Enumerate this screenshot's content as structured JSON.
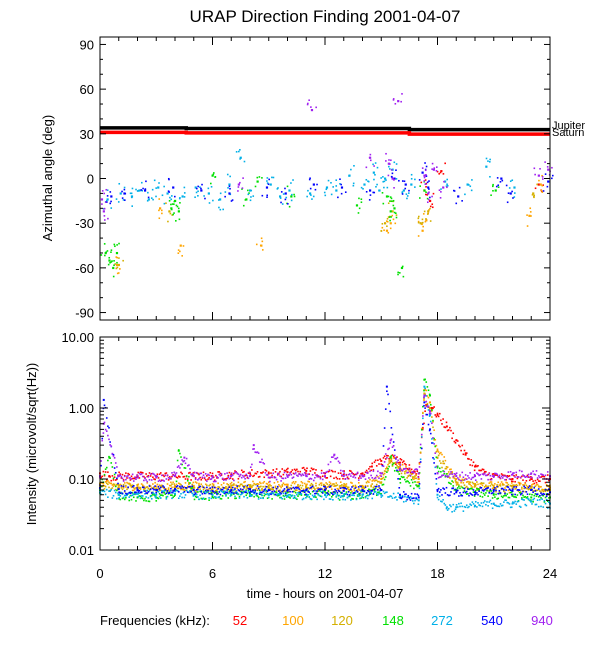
{
  "title": "URAP Direction Finding  2001-04-07",
  "xlabel": "time - hours on 2001-04-07",
  "x_ticks": [
    0,
    6,
    12,
    18,
    24
  ],
  "frequencies_label": "Frequencies (kHz):",
  "frequencies": [
    {
      "label": "52",
      "color": "#ff0000"
    },
    {
      "label": "100",
      "color": "#ffa500"
    },
    {
      "label": "120",
      "color": "#d4b000"
    },
    {
      "label": "148",
      "color": "#00e000"
    },
    {
      "label": "272",
      "color": "#00b0e8"
    },
    {
      "label": "540",
      "color": "#0000ff"
    },
    {
      "label": "940",
      "color": "#a020f0"
    }
  ],
  "chart_data": [
    {
      "type": "scatter",
      "title": "URAP Direction Finding  2001-04-07",
      "ylabel": "Azimuthal angle (deg)",
      "xlabel": "",
      "xlim": [
        0,
        24
      ],
      "ylim": [
        -95,
        95
      ],
      "y_ticks": [
        90,
        60,
        30,
        0,
        -30,
        -60,
        -90
      ],
      "reference_lines": [
        {
          "name": "Jupiter",
          "color": "#000000",
          "points": [
            [
              0,
              34
            ],
            [
              4.6,
              34
            ],
            [
              4.6,
              33.6
            ],
            [
              16.5,
              33.6
            ],
            [
              16.5,
              32.8
            ],
            [
              24,
              32.8
            ]
          ]
        },
        {
          "name": "Saturn",
          "color": "#ff0000",
          "points": [
            [
              0,
              31
            ],
            [
              4.6,
              31
            ],
            [
              4.6,
              30.6
            ],
            [
              16.5,
              30.6
            ],
            [
              16.5,
              29.8
            ],
            [
              24,
              29.8
            ]
          ]
        }
      ],
      "series": [
        {
          "name": "52",
          "color": "#ff0000",
          "points": [
            [
              17.3,
              -8
            ],
            [
              17.6,
              -15
            ],
            [
              18.2,
              5
            ],
            [
              23.4,
              -4
            ]
          ]
        },
        {
          "name": "100",
          "color": "#ffa500",
          "points": [
            [
              0.9,
              -58
            ],
            [
              3.2,
              -20
            ],
            [
              4.3,
              -45
            ],
            [
              8.6,
              -45
            ],
            [
              15.3,
              -35
            ],
            [
              15.5,
              -30
            ],
            [
              17.2,
              -35
            ],
            [
              17.4,
              -28
            ],
            [
              22.9,
              -25
            ],
            [
              23.5,
              -4
            ]
          ]
        },
        {
          "name": "120",
          "color": "#d4b000",
          "points": [
            [
              1.0,
              -58
            ],
            [
              3.7,
              -22
            ],
            [
              15.2,
              -30
            ],
            [
              15.6,
              -22
            ],
            [
              17.1,
              -30
            ],
            [
              17.5,
              -22
            ],
            [
              23.1,
              -10
            ]
          ]
        },
        {
          "name": "148",
          "color": "#00e000",
          "points": [
            [
              0.3,
              -50
            ],
            [
              0.5,
              -55
            ],
            [
              0.7,
              -60
            ],
            [
              0.9,
              -50
            ],
            [
              3.8,
              -20
            ],
            [
              4.0,
              -15
            ],
            [
              4.2,
              -22
            ],
            [
              6.0,
              2
            ],
            [
              7.8,
              -14
            ],
            [
              8.4,
              -2
            ],
            [
              10.2,
              -12
            ],
            [
              13.7,
              -18
            ],
            [
              15.3,
              -12
            ],
            [
              15.5,
              -22
            ],
            [
              15.7,
              -20
            ],
            [
              16.1,
              -60
            ],
            [
              17.3,
              -8
            ],
            [
              21.1,
              -8
            ]
          ]
        },
        {
          "name": "272",
          "color": "#00b0e8",
          "points": [
            [
              0.4,
              -14
            ],
            [
              1.1,
              -10
            ],
            [
              1.7,
              -12
            ],
            [
              2.1,
              -8
            ],
            [
              2.6,
              -14
            ],
            [
              3.1,
              -6
            ],
            [
              3.6,
              -10
            ],
            [
              4.4,
              -12
            ],
            [
              5.1,
              -6
            ],
            [
              5.8,
              -10
            ],
            [
              6.4,
              -14
            ],
            [
              6.9,
              -4
            ],
            [
              7.5,
              14
            ],
            [
              8.0,
              -8
            ],
            [
              9.1,
              -4
            ],
            [
              9.6,
              -12
            ],
            [
              10.1,
              -8
            ],
            [
              11.2,
              -10
            ],
            [
              12.1,
              -6
            ],
            [
              12.6,
              -8
            ],
            [
              13.3,
              2
            ],
            [
              14.1,
              -4
            ],
            [
              14.6,
              4
            ],
            [
              14.9,
              -8
            ],
            [
              15.2,
              0
            ],
            [
              15.6,
              6
            ],
            [
              16.2,
              -8
            ],
            [
              16.6,
              -4
            ],
            [
              18.4,
              -2
            ],
            [
              19.6,
              -4
            ],
            [
              20.6,
              8
            ],
            [
              22.1,
              -6
            ]
          ]
        },
        {
          "name": "540",
          "color": "#0000ff",
          "points": [
            [
              0.6,
              -12
            ],
            [
              1.3,
              -10
            ],
            [
              2.4,
              -8
            ],
            [
              3.9,
              -6
            ],
            [
              5.4,
              -8
            ],
            [
              6.9,
              -10
            ],
            [
              8.9,
              -6
            ],
            [
              9.9,
              -10
            ],
            [
              11.4,
              -4
            ],
            [
              12.9,
              -6
            ],
            [
              14.4,
              -8
            ],
            [
              15.7,
              0
            ],
            [
              16.3,
              -4
            ],
            [
              17.2,
              4
            ],
            [
              17.5,
              -6
            ],
            [
              19.1,
              -12
            ],
            [
              21.4,
              0
            ],
            [
              21.9,
              -10
            ],
            [
              23.9,
              -2
            ]
          ]
        },
        {
          "name": "940",
          "color": "#a020f0",
          "points": [
            [
              0.1,
              -14
            ],
            [
              0.2,
              -22
            ],
            [
              7.4,
              -4
            ],
            [
              11.3,
              46
            ],
            [
              14.4,
              14
            ],
            [
              15.4,
              10
            ],
            [
              15.6,
              0
            ],
            [
              15.9,
              52
            ],
            [
              17.3,
              2
            ],
            [
              17.5,
              -10
            ],
            [
              17.8,
              6
            ],
            [
              18.3,
              -6
            ],
            [
              23.4,
              2
            ],
            [
              23.9,
              6
            ]
          ]
        }
      ]
    },
    {
      "type": "scatter",
      "title": "",
      "ylabel": "Intensity (microvolt/sqrt(Hz))",
      "xlabel": "time - hours on 2001-04-07",
      "xlim": [
        0,
        24
      ],
      "ylim": [
        0.01,
        10
      ],
      "yscale": "log",
      "y_ticks": [
        "10.00",
        "1.00",
        "0.10",
        "0.01"
      ],
      "series": [
        {
          "name": "52",
          "color": "#ff0000",
          "x": [
            0,
            0.5,
            1,
            2,
            3,
            4,
            5,
            6,
            7,
            8,
            9,
            10,
            11,
            12,
            13,
            14,
            14.5,
            15,
            15.5,
            16,
            16.5,
            17,
            17.2,
            17.4,
            17.7,
            18,
            18.5,
            19,
            19.5,
            20,
            20.5,
            21,
            22,
            23,
            24
          ],
          "y": [
            0.12,
            0.11,
            0.11,
            0.11,
            0.11,
            0.11,
            0.11,
            0.11,
            0.115,
            0.12,
            0.12,
            0.125,
            0.13,
            0.12,
            0.115,
            0.12,
            0.15,
            0.18,
            0.2,
            0.17,
            0.14,
            0.12,
            0.5,
            1.1,
            1.0,
            0.8,
            0.55,
            0.35,
            0.22,
            0.15,
            0.12,
            0.11,
            0.1,
            0.1,
            0.1
          ]
        },
        {
          "name": "100",
          "color": "#ffa500",
          "x": [
            0,
            1,
            2,
            3,
            4,
            5,
            6,
            7,
            8,
            9,
            10,
            11,
            12,
            13,
            14,
            15,
            15.5,
            16,
            17,
            17.3,
            17.6,
            18,
            19,
            20,
            21,
            22,
            23,
            24
          ],
          "y": [
            0.085,
            0.08,
            0.08,
            0.078,
            0.08,
            0.08,
            0.078,
            0.08,
            0.082,
            0.08,
            0.08,
            0.082,
            0.08,
            0.08,
            0.08,
            0.1,
            0.2,
            0.15,
            0.1,
            1.8,
            1.2,
            0.25,
            0.1,
            0.085,
            0.08,
            0.08,
            0.078,
            0.075
          ]
        },
        {
          "name": "120",
          "color": "#d4b000",
          "x": [
            0,
            1,
            2,
            3,
            4,
            5,
            6,
            7,
            8,
            9,
            10,
            11,
            12,
            13,
            14,
            15,
            15.5,
            16,
            17,
            17.3,
            17.6,
            18,
            19,
            20,
            21,
            22,
            23,
            24
          ],
          "y": [
            0.08,
            0.075,
            0.075,
            0.072,
            0.075,
            0.075,
            0.073,
            0.075,
            0.077,
            0.075,
            0.074,
            0.076,
            0.075,
            0.075,
            0.075,
            0.09,
            0.18,
            0.13,
            0.09,
            1.6,
            1.0,
            0.2,
            0.09,
            0.08,
            0.075,
            0.074,
            0.072,
            0.07
          ]
        },
        {
          "name": "148",
          "color": "#00e000",
          "x": [
            0,
            0.5,
            1,
            2,
            3,
            4,
            4.2,
            5,
            6,
            7,
            8,
            9,
            10,
            11,
            12,
            13,
            14,
            15,
            15.5,
            16,
            17,
            17.3,
            17.6,
            18,
            19,
            20,
            21,
            22,
            23,
            24
          ],
          "y": [
            0.07,
            0.2,
            0.06,
            0.055,
            0.055,
            0.06,
            0.25,
            0.06,
            0.058,
            0.06,
            0.062,
            0.06,
            0.058,
            0.06,
            0.06,
            0.058,
            0.06,
            0.07,
            0.2,
            0.1,
            0.08,
            2.5,
            1.5,
            0.15,
            0.07,
            0.065,
            0.06,
            0.058,
            0.055,
            0.055
          ]
        },
        {
          "name": "272",
          "color": "#00b0e8",
          "x": [
            0,
            1,
            2,
            3,
            4,
            5,
            6,
            7,
            8,
            9,
            10,
            11,
            12,
            13,
            14,
            15,
            16,
            17,
            17.3,
            17.6,
            18,
            18.5,
            19,
            20,
            21,
            22,
            23,
            24
          ],
          "y": [
            0.065,
            0.06,
            0.062,
            0.06,
            0.062,
            0.06,
            0.06,
            0.062,
            0.06,
            0.06,
            0.058,
            0.06,
            0.06,
            0.058,
            0.06,
            0.06,
            0.055,
            0.05,
            2.0,
            0.8,
            0.06,
            0.04,
            0.04,
            0.042,
            0.045,
            0.045,
            0.048,
            0.045
          ]
        },
        {
          "name": "540",
          "color": "#0000ff",
          "x": [
            0,
            0.2,
            1,
            2,
            3,
            4,
            5,
            6,
            7,
            8,
            9,
            10,
            11,
            12,
            13,
            14,
            15,
            15.3,
            16,
            17,
            17.3,
            17.6,
            18,
            19,
            20,
            21,
            22,
            23,
            24
          ],
          "y": [
            0.075,
            1.3,
            0.072,
            0.07,
            0.07,
            0.072,
            0.07,
            0.068,
            0.07,
            0.072,
            0.07,
            0.068,
            0.07,
            0.07,
            0.068,
            0.07,
            0.07,
            2.0,
            0.06,
            0.055,
            1.2,
            0.5,
            0.07,
            0.065,
            0.065,
            0.07,
            0.068,
            0.07,
            0.065
          ]
        },
        {
          "name": "940",
          "color": "#a020f0",
          "x": [
            0,
            0.2,
            1,
            2,
            3,
            4,
            4.5,
            5,
            6,
            7,
            8,
            8.2,
            9,
            10,
            11,
            12,
            12.5,
            13,
            14,
            15,
            15.5,
            16,
            17,
            17.3,
            17.6,
            18,
            19,
            20,
            21,
            22,
            23,
            24
          ],
          "y": [
            0.11,
            0.6,
            0.11,
            0.105,
            0.105,
            0.11,
            0.2,
            0.11,
            0.105,
            0.11,
            0.11,
            0.3,
            0.105,
            0.11,
            0.11,
            0.11,
            0.22,
            0.11,
            0.11,
            0.12,
            0.35,
            0.14,
            0.12,
            1.5,
            0.9,
            0.12,
            0.11,
            0.11,
            0.11,
            0.115,
            0.12,
            0.11
          ]
        }
      ]
    }
  ],
  "labels": {
    "jupiter": "Jupiter",
    "saturn": "Saturn"
  }
}
